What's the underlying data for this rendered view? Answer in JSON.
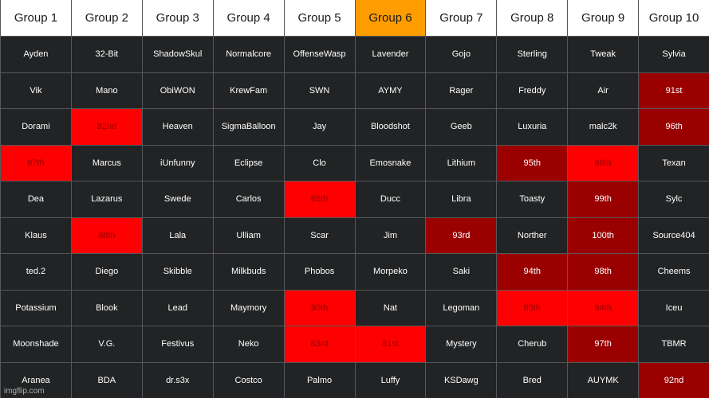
{
  "colors": {
    "header_bg": "#ffffff",
    "header_highlight": "#ff9c00",
    "cell_bg": "#222324",
    "red": "#ff0000",
    "dark_red": "#9a0000"
  },
  "headers": [
    {
      "label": "Group 1",
      "highlight": false
    },
    {
      "label": "Group 2",
      "highlight": false
    },
    {
      "label": "Group 3",
      "highlight": false
    },
    {
      "label": "Group 4",
      "highlight": false
    },
    {
      "label": "Group 5",
      "highlight": false
    },
    {
      "label": "Group 6",
      "highlight": true
    },
    {
      "label": "Group 7",
      "highlight": false
    },
    {
      "label": "Group 8",
      "highlight": false
    },
    {
      "label": "Group 9",
      "highlight": false
    },
    {
      "label": "Group 10",
      "highlight": false
    }
  ],
  "rows": [
    [
      {
        "text": "Ayden",
        "style": "normal"
      },
      {
        "text": "32-Bit",
        "style": "normal"
      },
      {
        "text": "ShadowSkul",
        "style": "normal"
      },
      {
        "text": "Normalcore",
        "style": "normal"
      },
      {
        "text": "OffenseWasp",
        "style": "normal"
      },
      {
        "text": "Lavender",
        "style": "normal"
      },
      {
        "text": "Gojo",
        "style": "normal"
      },
      {
        "text": "Sterling",
        "style": "normal"
      },
      {
        "text": "Tweak",
        "style": "normal"
      },
      {
        "text": "Sylvia",
        "style": "normal"
      }
    ],
    [
      {
        "text": "Vik",
        "style": "normal"
      },
      {
        "text": "Mano",
        "style": "normal"
      },
      {
        "text": "ObiWON",
        "style": "normal"
      },
      {
        "text": "KrewFam",
        "style": "normal"
      },
      {
        "text": "SWN",
        "style": "normal"
      },
      {
        "text": "AYMY",
        "style": "normal"
      },
      {
        "text": "Rager",
        "style": "normal"
      },
      {
        "text": "Freddy",
        "style": "normal"
      },
      {
        "text": "Air",
        "style": "normal"
      },
      {
        "text": "91st",
        "style": "dark"
      }
    ],
    [
      {
        "text": "Dorami",
        "style": "normal"
      },
      {
        "text": "82nd",
        "style": "red"
      },
      {
        "text": "Heaven",
        "style": "normal"
      },
      {
        "text": "SigmaBalloon",
        "style": "normal"
      },
      {
        "text": "Jay",
        "style": "normal"
      },
      {
        "text": "Bloodshot",
        "style": "normal"
      },
      {
        "text": "Geeb",
        "style": "normal"
      },
      {
        "text": "Luxuria",
        "style": "normal"
      },
      {
        "text": "malc2k",
        "style": "normal"
      },
      {
        "text": "96th",
        "style": "dark"
      }
    ],
    [
      {
        "text": "87th",
        "style": "red"
      },
      {
        "text": "Marcus",
        "style": "normal"
      },
      {
        "text": "iUnfunny",
        "style": "normal"
      },
      {
        "text": "Eclipse",
        "style": "normal"
      },
      {
        "text": "Clo",
        "style": "normal"
      },
      {
        "text": "Emosnake",
        "style": "normal"
      },
      {
        "text": "Lithium",
        "style": "normal"
      },
      {
        "text": "95th",
        "style": "dark"
      },
      {
        "text": "86th",
        "style": "red"
      },
      {
        "text": "Texan",
        "style": "normal"
      }
    ],
    [
      {
        "text": "Dea",
        "style": "normal"
      },
      {
        "text": "Lazarus",
        "style": "normal"
      },
      {
        "text": "Swede",
        "style": "normal"
      },
      {
        "text": "Carlos",
        "style": "normal"
      },
      {
        "text": "89th",
        "style": "red"
      },
      {
        "text": "Ducc",
        "style": "normal"
      },
      {
        "text": "Libra",
        "style": "normal"
      },
      {
        "text": "Toasty",
        "style": "normal"
      },
      {
        "text": "99th",
        "style": "dark"
      },
      {
        "text": "Sylc",
        "style": "normal"
      }
    ],
    [
      {
        "text": "Klaus",
        "style": "normal"
      },
      {
        "text": "88th",
        "style": "red"
      },
      {
        "text": "Lala",
        "style": "normal"
      },
      {
        "text": "Ulliam",
        "style": "normal"
      },
      {
        "text": "Scar",
        "style": "normal"
      },
      {
        "text": "Jim",
        "style": "normal"
      },
      {
        "text": "93rd",
        "style": "dark"
      },
      {
        "text": "Norther",
        "style": "normal"
      },
      {
        "text": "100th",
        "style": "dark"
      },
      {
        "text": "Source404",
        "style": "normal"
      }
    ],
    [
      {
        "text": "ted.2",
        "style": "normal"
      },
      {
        "text": "Diego",
        "style": "normal"
      },
      {
        "text": "Skibble",
        "style": "normal"
      },
      {
        "text": "Milkbuds",
        "style": "normal"
      },
      {
        "text": "Phobos",
        "style": "normal"
      },
      {
        "text": "Morpeko",
        "style": "normal"
      },
      {
        "text": "Saki",
        "style": "normal"
      },
      {
        "text": "94th",
        "style": "dark"
      },
      {
        "text": "98th",
        "style": "dark"
      },
      {
        "text": "Cheems",
        "style": "normal"
      }
    ],
    [
      {
        "text": "Potassium",
        "style": "normal"
      },
      {
        "text": "Blook",
        "style": "normal"
      },
      {
        "text": "Lead",
        "style": "normal"
      },
      {
        "text": "Maymory",
        "style": "normal"
      },
      {
        "text": "90th",
        "style": "red"
      },
      {
        "text": "Nat",
        "style": "normal"
      },
      {
        "text": "Legoman",
        "style": "normal"
      },
      {
        "text": "85th",
        "style": "red"
      },
      {
        "text": "84th",
        "style": "red"
      },
      {
        "text": "Iceu",
        "style": "normal"
      }
    ],
    [
      {
        "text": "Moonshade",
        "style": "normal"
      },
      {
        "text": "V.G.",
        "style": "normal"
      },
      {
        "text": "Festivus",
        "style": "normal"
      },
      {
        "text": "Neko",
        "style": "normal"
      },
      {
        "text": "83rd",
        "style": "red"
      },
      {
        "text": "81st",
        "style": "red"
      },
      {
        "text": "Mystery",
        "style": "normal"
      },
      {
        "text": "Cherub",
        "style": "normal"
      },
      {
        "text": "97th",
        "style": "dark"
      },
      {
        "text": "TBMR",
        "style": "normal"
      }
    ],
    [
      {
        "text": "Aranea",
        "style": "normal"
      },
      {
        "text": "BDA",
        "style": "normal"
      },
      {
        "text": "dr.s3x",
        "style": "normal"
      },
      {
        "text": "Costco",
        "style": "normal"
      },
      {
        "text": "Palmo",
        "style": "normal"
      },
      {
        "text": "Luffy",
        "style": "normal"
      },
      {
        "text": "KSDawg",
        "style": "normal"
      },
      {
        "text": "Bred",
        "style": "normal"
      },
      {
        "text": "AUYMK",
        "style": "normal"
      },
      {
        "text": "92nd",
        "style": "dark"
      }
    ]
  ],
  "watermark": "imgflip.com"
}
